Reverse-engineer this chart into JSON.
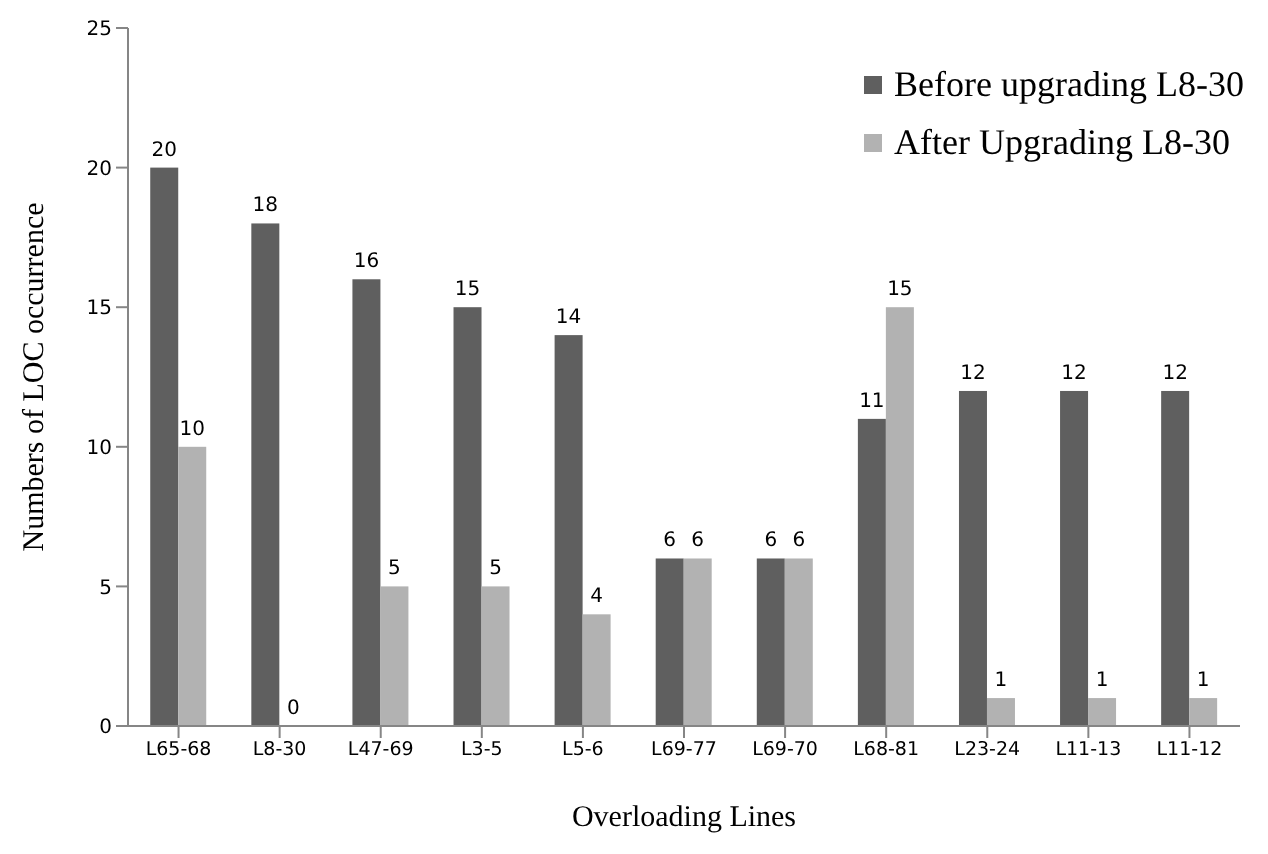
{
  "chart_data": {
    "type": "bar",
    "xlabel": "Overloading Lines",
    "ylabel": "Numbers of LOC  occurrence",
    "categories": [
      "L65-68",
      "L8-30",
      "L47-69",
      "L3-5",
      "L5-6",
      "L69-77",
      "L69-70",
      "L68-81",
      "L23-24",
      "L11-13",
      "L11-12"
    ],
    "series": [
      {
        "name": "Before upgrading L8-30",
        "color": "#5f5f5f",
        "values": [
          20,
          18,
          16,
          15,
          14,
          6,
          6,
          11,
          12,
          12,
          12
        ]
      },
      {
        "name": "After Upgrading L8-30",
        "color": "#b2b2b2",
        "values": [
          10,
          0,
          5,
          5,
          4,
          6,
          6,
          15,
          1,
          1,
          1
        ]
      }
    ],
    "ylim": [
      0,
      25
    ],
    "yticks": [
      0,
      5,
      10,
      15,
      20,
      25
    ],
    "grid": false,
    "legend": "top right",
    "data_labels": true
  }
}
